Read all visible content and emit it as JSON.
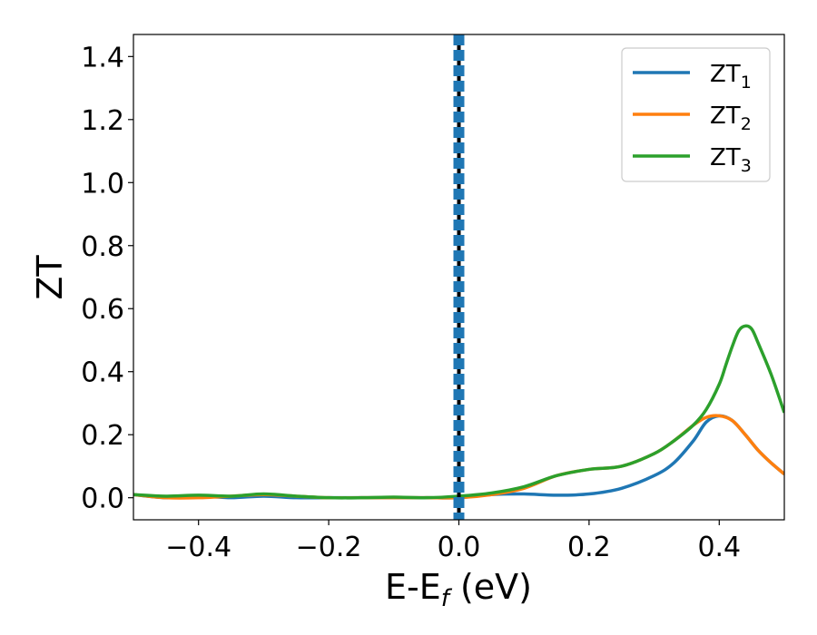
{
  "chart_data": {
    "type": "line",
    "xlabel": "E-E",
    "xlabel_sub": "f",
    "xlabel_unit": " (eV)",
    "ylabel": "ZT",
    "xlim": [
      -0.5,
      0.5
    ],
    "ylim": [
      -0.07,
      1.47
    ],
    "xticks": [
      -0.4,
      -0.2,
      0.0,
      0.2,
      0.4
    ],
    "xtick_labels": [
      "−0.4",
      "−0.2",
      "0.0",
      "0.2",
      "0.4"
    ],
    "yticks": [
      0.0,
      0.2,
      0.4,
      0.6,
      0.8,
      1.0,
      1.2,
      1.4
    ],
    "ytick_labels": [
      "0.0",
      "0.2",
      "0.4",
      "0.6",
      "0.8",
      "1.0",
      "1.2",
      "1.4"
    ],
    "grid": false,
    "legend_position": "top-right",
    "vertical_line": {
      "x": 0.0,
      "style": "dashed",
      "colors": [
        "#000000",
        "#1f77b4"
      ]
    },
    "series": [
      {
        "name_base": "ZT",
        "name_sub": "1",
        "color": "#1f77b4",
        "x": [
          -0.5,
          -0.45,
          -0.4,
          -0.35,
          -0.3,
          -0.25,
          -0.2,
          -0.15,
          -0.1,
          -0.05,
          0.0,
          0.05,
          0.1,
          0.15,
          0.2,
          0.25,
          0.3,
          0.33,
          0.36,
          0.38,
          0.4,
          0.42,
          0.44,
          0.46,
          0.48,
          0.5
        ],
        "y": [
          0.01,
          0.0,
          0.005,
          0.0,
          0.005,
          0.0,
          0.0,
          0.0,
          0.0,
          0.0,
          0.0,
          0.01,
          0.012,
          0.008,
          0.012,
          0.03,
          0.07,
          0.11,
          0.18,
          0.24,
          0.26,
          0.245,
          0.2,
          0.15,
          0.11,
          0.075
        ]
      },
      {
        "name_base": "ZT",
        "name_sub": "2",
        "color": "#ff7f0e",
        "x": [
          -0.5,
          -0.45,
          -0.4,
          -0.35,
          -0.3,
          -0.25,
          -0.2,
          -0.15,
          -0.1,
          -0.05,
          0.0,
          0.05,
          0.1,
          0.15,
          0.2,
          0.25,
          0.3,
          0.33,
          0.36,
          0.38,
          0.4,
          0.42,
          0.44,
          0.46,
          0.48,
          0.5
        ],
        "y": [
          0.01,
          0.0,
          0.0,
          0.005,
          0.01,
          0.005,
          0.0,
          0.0,
          0.0,
          0.0,
          0.0,
          0.01,
          0.03,
          0.07,
          0.09,
          0.1,
          0.14,
          0.18,
          0.23,
          0.255,
          0.26,
          0.245,
          0.2,
          0.15,
          0.11,
          0.075
        ]
      },
      {
        "name_base": "ZT",
        "name_sub": "3",
        "color": "#2ca02c",
        "x": [
          -0.5,
          -0.45,
          -0.4,
          -0.35,
          -0.3,
          -0.25,
          -0.2,
          -0.15,
          -0.1,
          -0.05,
          0.0,
          0.05,
          0.1,
          0.15,
          0.2,
          0.25,
          0.3,
          0.33,
          0.36,
          0.38,
          0.4,
          0.41,
          0.42,
          0.43,
          0.44,
          0.45,
          0.46,
          0.48,
          0.5
        ],
        "y": [
          0.01,
          0.005,
          0.008,
          0.005,
          0.012,
          0.005,
          0.0,
          0.0,
          0.002,
          0.0,
          0.005,
          0.015,
          0.035,
          0.07,
          0.09,
          0.1,
          0.14,
          0.18,
          0.23,
          0.28,
          0.36,
          0.42,
          0.48,
          0.53,
          0.545,
          0.535,
          0.49,
          0.39,
          0.27
        ]
      }
    ]
  }
}
